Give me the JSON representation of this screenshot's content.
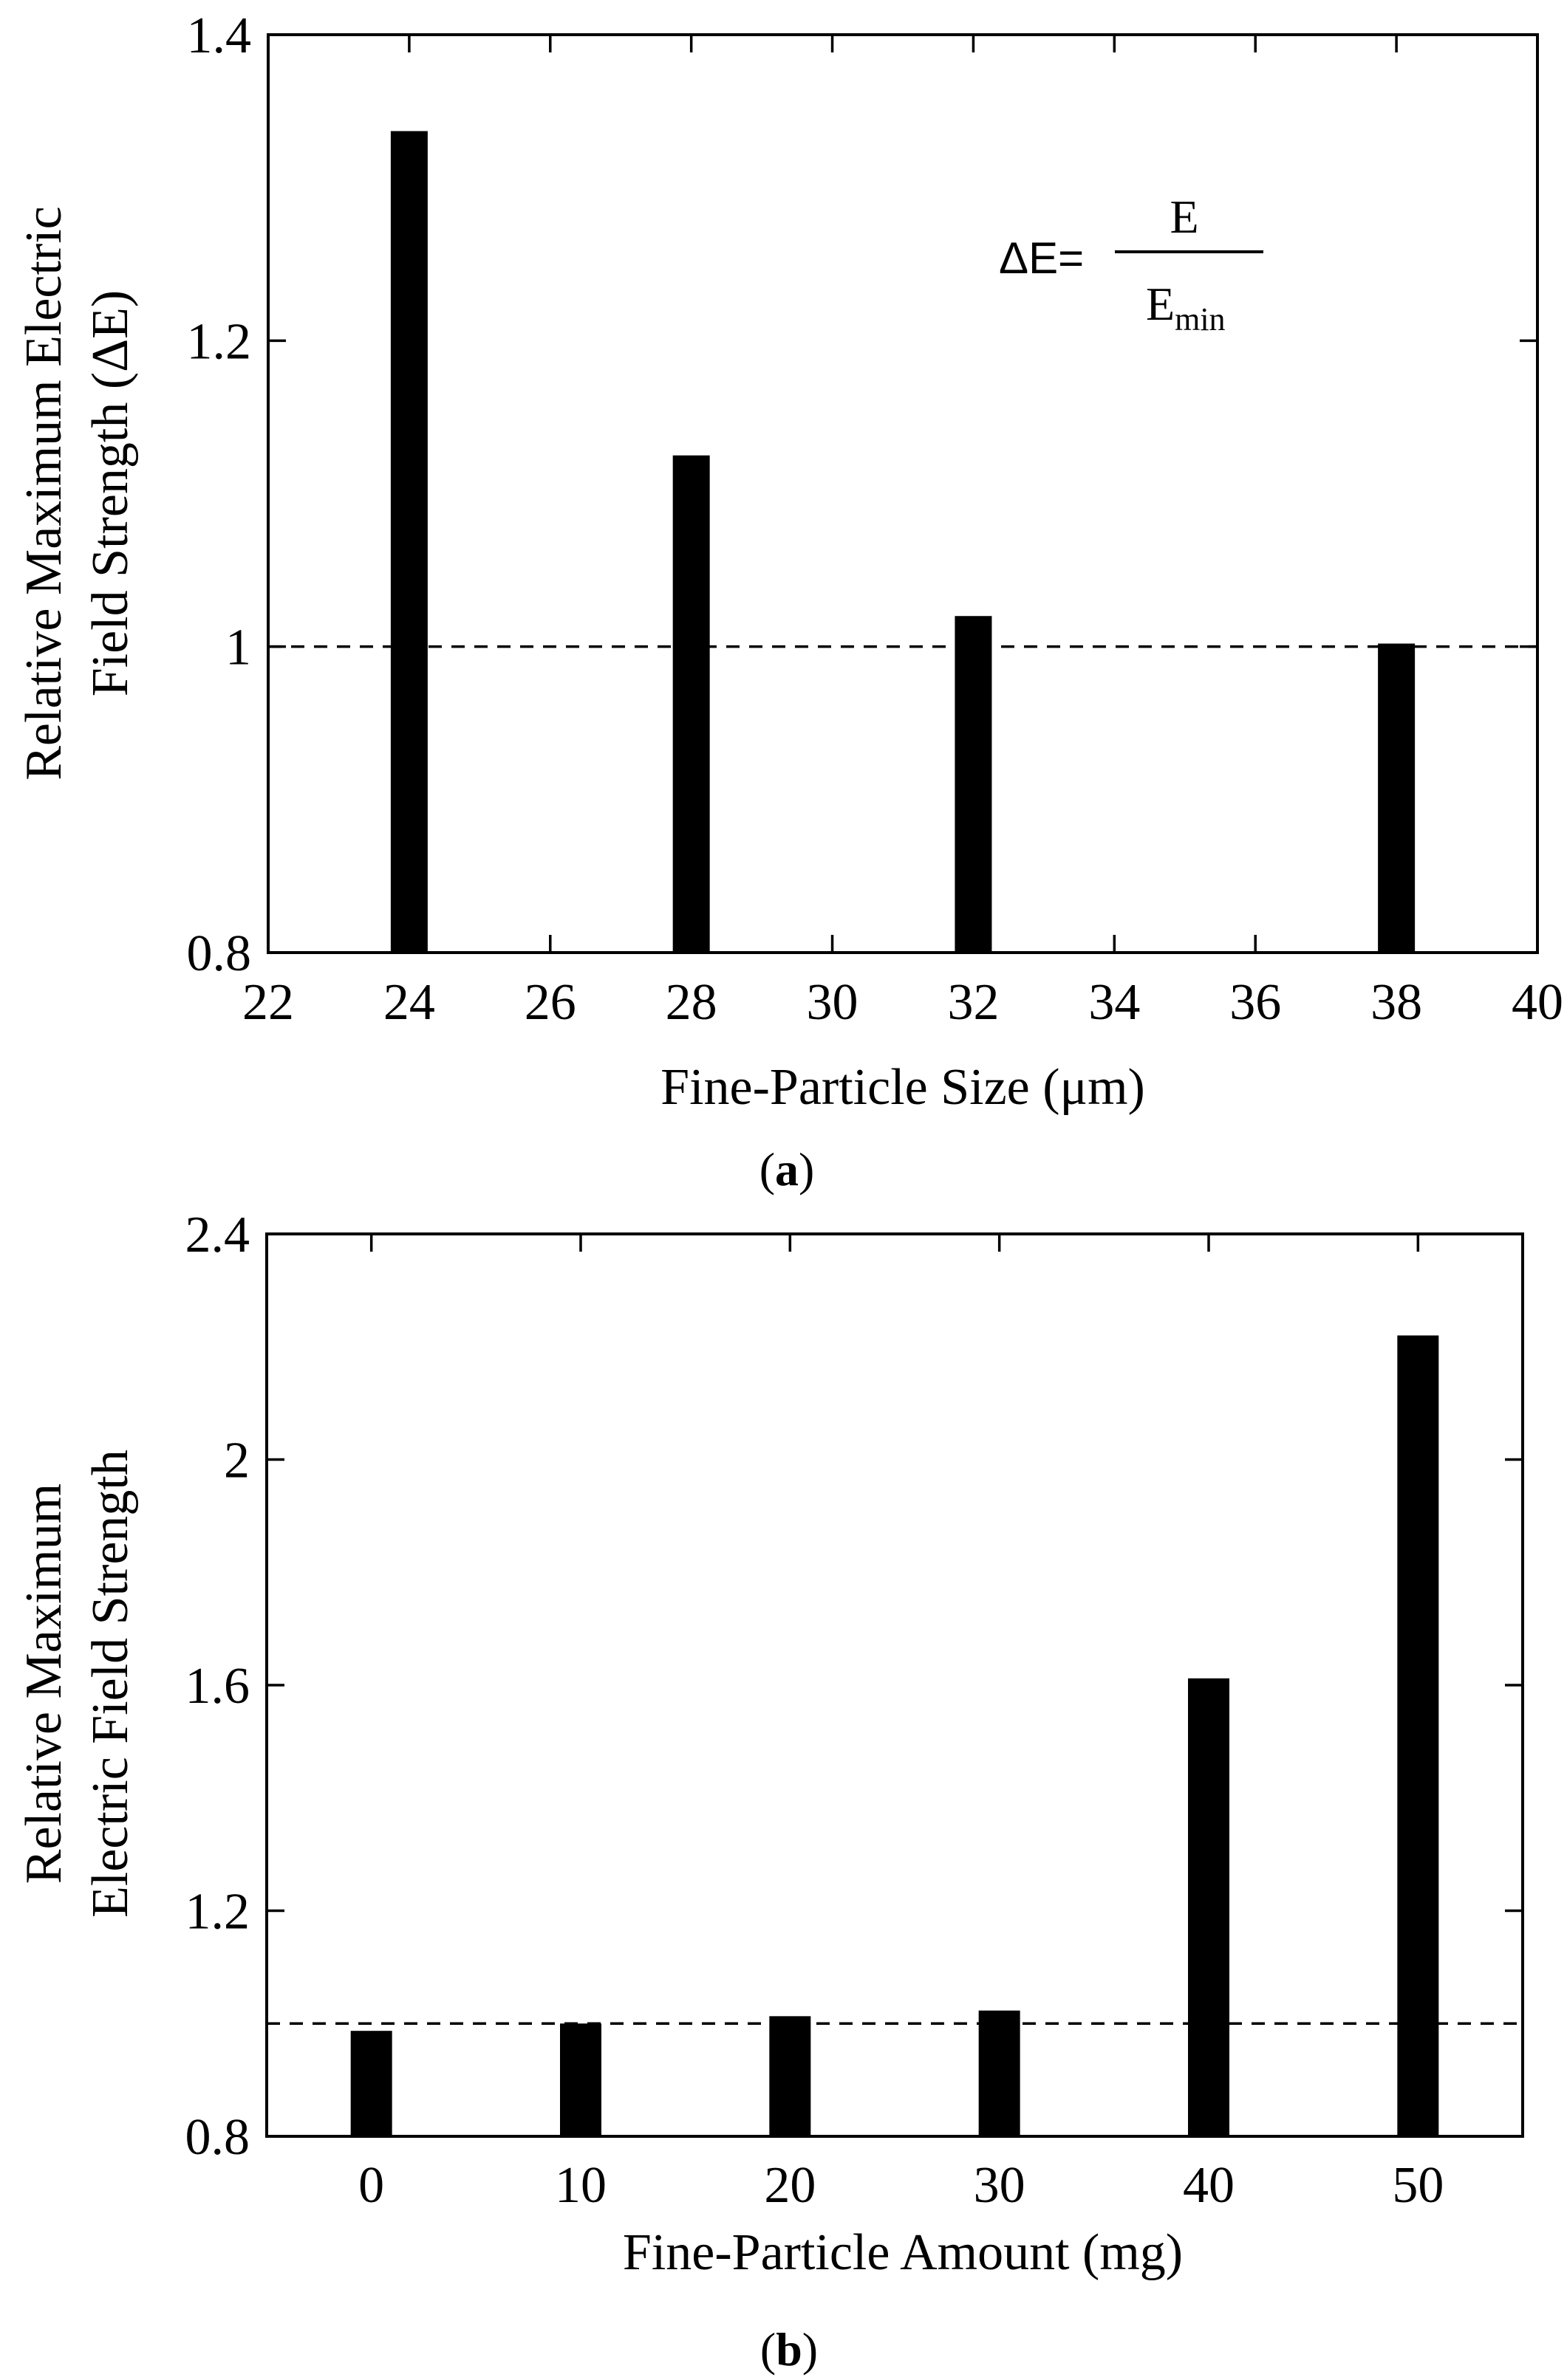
{
  "colors": {
    "bar": "#000000",
    "axis": "#000000",
    "background": "#ffffff"
  },
  "chart_data": [
    {
      "type": "bar",
      "panel": "a",
      "caption_open": "(",
      "caption_letter": "a",
      "caption_close": ")",
      "xlabel": "Fine-Particle Size (μm)",
      "ylabel_line1": "Relative Maximum Electric",
      "ylabel_line2": "Field Strength (ΔE)",
      "xlim": [
        22,
        40
      ],
      "ylim": [
        0.8,
        1.4
      ],
      "xticks": [
        22,
        24,
        26,
        28,
        30,
        32,
        34,
        36,
        38,
        40
      ],
      "xtick_labels": [
        "22",
        "24",
        "26",
        "28",
        "30",
        "32",
        "34",
        "36",
        "38",
        "40"
      ],
      "yticks": [
        0.8,
        1.0,
        1.2,
        1.4
      ],
      "ytick_labels": [
        "0.8",
        "1",
        "1.2",
        "1.4"
      ],
      "x": [
        24,
        28,
        32,
        38
      ],
      "values": [
        1.337,
        1.125,
        1.02,
        1.002
      ],
      "reference_line": 1.0,
      "grid": false,
      "annotation": {
        "lhs": "ΔE=",
        "numerator": "E",
        "denominator_base": "E",
        "denominator_sub": "min"
      }
    },
    {
      "type": "bar",
      "panel": "b",
      "caption_open": "(",
      "caption_letter": "b",
      "caption_close": ")",
      "xlabel": "Fine-Particle Amount (mg)",
      "ylabel_line1": "Relative Maximum",
      "ylabel_line2": "Electric Field Strength",
      "xlim": [
        -5,
        55
      ],
      "ylim": [
        0.8,
        2.4
      ],
      "xticks": [
        0,
        10,
        20,
        30,
        40,
        50
      ],
      "xtick_labels": [
        "0",
        "10",
        "20",
        "30",
        "40",
        "50"
      ],
      "yticks": [
        0.8,
        1.2,
        1.6,
        2.0,
        2.4
      ],
      "ytick_labels": [
        "0.8",
        "1.2",
        "1.6",
        "2",
        "2.4"
      ],
      "x": [
        0,
        10,
        20,
        30,
        40,
        50
      ],
      "values": [
        0.987,
        1.0,
        1.013,
        1.023,
        1.612,
        2.22
      ],
      "reference_line": 1.0,
      "grid": false
    }
  ]
}
